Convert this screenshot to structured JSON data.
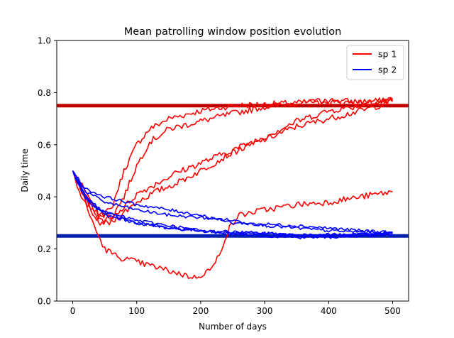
{
  "chart_data": {
    "type": "line",
    "title": "Mean patrolling window position evolution",
    "xlabel": "Number of days",
    "ylabel": "Daily time",
    "xlim": [
      -25,
      525
    ],
    "ylim": [
      0.0,
      1.0
    ],
    "x_ticks": [
      0,
      100,
      200,
      300,
      400,
      500
    ],
    "y_ticks": [
      0.0,
      0.2,
      0.4,
      0.6,
      0.8,
      1.0
    ],
    "x_tick_labels": [
      "0",
      "100",
      "200",
      "300",
      "400",
      "500"
    ],
    "y_tick_labels": [
      "0.0",
      "0.2",
      "0.4",
      "0.6",
      "0.8",
      "1.0"
    ],
    "grid": false,
    "legend_position": "top-right",
    "legend": [
      {
        "label": "sp 1",
        "color": "#ff0000"
      },
      {
        "label": "sp 2",
        "color": "#0000ff"
      }
    ],
    "reference_lines": [
      {
        "y": 0.75,
        "color": "#c00000"
      },
      {
        "y": 0.25,
        "color": "#0020b0"
      }
    ],
    "series": [
      {
        "group": "sp 1",
        "color": "#ff0000",
        "points": [
          [
            0,
            0.5
          ],
          [
            20,
            0.4
          ],
          [
            40,
            0.33
          ],
          [
            60,
            0.35
          ],
          [
            80,
            0.5
          ],
          [
            100,
            0.6
          ],
          [
            120,
            0.66
          ],
          [
            150,
            0.7
          ],
          [
            200,
            0.73
          ],
          [
            250,
            0.75
          ],
          [
            300,
            0.755
          ],
          [
            350,
            0.76
          ],
          [
            400,
            0.77
          ],
          [
            450,
            0.765
          ],
          [
            500,
            0.77
          ]
        ]
      },
      {
        "group": "sp 1",
        "color": "#ff0000",
        "points": [
          [
            0,
            0.5
          ],
          [
            20,
            0.38
          ],
          [
            40,
            0.31
          ],
          [
            60,
            0.32
          ],
          [
            80,
            0.4
          ],
          [
            100,
            0.52
          ],
          [
            120,
            0.61
          ],
          [
            150,
            0.66
          ],
          [
            200,
            0.69
          ],
          [
            250,
            0.72
          ],
          [
            300,
            0.745
          ],
          [
            350,
            0.76
          ],
          [
            400,
            0.765
          ],
          [
            450,
            0.76
          ],
          [
            500,
            0.77
          ]
        ]
      },
      {
        "group": "sp 1",
        "color": "#ff0000",
        "points": [
          [
            0,
            0.5
          ],
          [
            20,
            0.4
          ],
          [
            40,
            0.3
          ],
          [
            60,
            0.3
          ],
          [
            80,
            0.34
          ],
          [
            100,
            0.38
          ],
          [
            130,
            0.42
          ],
          [
            160,
            0.45
          ],
          [
            200,
            0.5
          ],
          [
            250,
            0.57
          ],
          [
            300,
            0.62
          ],
          [
            350,
            0.67
          ],
          [
            400,
            0.7
          ],
          [
            450,
            0.73
          ],
          [
            500,
            0.765
          ]
        ]
      },
      {
        "group": "sp 1",
        "color": "#ff0000",
        "points": [
          [
            0,
            0.5
          ],
          [
            20,
            0.42
          ],
          [
            40,
            0.34
          ],
          [
            60,
            0.32
          ],
          [
            80,
            0.36
          ],
          [
            100,
            0.41
          ],
          [
            130,
            0.45
          ],
          [
            160,
            0.49
          ],
          [
            200,
            0.53
          ],
          [
            250,
            0.58
          ],
          [
            300,
            0.63
          ],
          [
            350,
            0.69
          ],
          [
            400,
            0.73
          ],
          [
            450,
            0.75
          ],
          [
            500,
            0.775
          ]
        ]
      },
      {
        "group": "sp 1",
        "color": "#ff0000",
        "points": [
          [
            0,
            0.5
          ],
          [
            10,
            0.42
          ],
          [
            20,
            0.37
          ],
          [
            30,
            0.31
          ],
          [
            40,
            0.25
          ],
          [
            50,
            0.2
          ],
          [
            70,
            0.17
          ],
          [
            100,
            0.15
          ],
          [
            130,
            0.13
          ],
          [
            160,
            0.11
          ],
          [
            190,
            0.09
          ],
          [
            200,
            0.1
          ],
          [
            220,
            0.13
          ],
          [
            235,
            0.22
          ],
          [
            245,
            0.28
          ],
          [
            260,
            0.33
          ],
          [
            300,
            0.35
          ],
          [
            350,
            0.37
          ],
          [
            400,
            0.38
          ],
          [
            450,
            0.4
          ],
          [
            500,
            0.42
          ]
        ]
      },
      {
        "group": "sp 2",
        "color": "#0000ff",
        "points": [
          [
            0,
            0.5
          ],
          [
            20,
            0.42
          ],
          [
            50,
            0.38
          ],
          [
            100,
            0.35
          ],
          [
            150,
            0.33
          ],
          [
            200,
            0.32
          ],
          [
            250,
            0.31
          ],
          [
            300,
            0.29
          ],
          [
            350,
            0.28
          ],
          [
            400,
            0.27
          ],
          [
            450,
            0.265
          ],
          [
            500,
            0.26
          ]
        ]
      },
      {
        "group": "sp 2",
        "color": "#0000ff",
        "points": [
          [
            0,
            0.5
          ],
          [
            20,
            0.43
          ],
          [
            50,
            0.4
          ],
          [
            100,
            0.37
          ],
          [
            150,
            0.35
          ],
          [
            200,
            0.33
          ],
          [
            250,
            0.3
          ],
          [
            300,
            0.295
          ],
          [
            350,
            0.29
          ],
          [
            400,
            0.28
          ],
          [
            450,
            0.27
          ],
          [
            500,
            0.265
          ]
        ]
      },
      {
        "group": "sp 2",
        "color": "#0000ff",
        "points": [
          [
            0,
            0.5
          ],
          [
            20,
            0.4
          ],
          [
            50,
            0.34
          ],
          [
            100,
            0.3
          ],
          [
            150,
            0.28
          ],
          [
            200,
            0.27
          ],
          [
            250,
            0.265
          ],
          [
            300,
            0.26
          ],
          [
            350,
            0.255
          ],
          [
            400,
            0.25
          ],
          [
            450,
            0.255
          ],
          [
            500,
            0.26
          ]
        ]
      },
      {
        "group": "sp 2",
        "color": "#0000ff",
        "points": [
          [
            0,
            0.5
          ],
          [
            20,
            0.39
          ],
          [
            50,
            0.33
          ],
          [
            100,
            0.3
          ],
          [
            150,
            0.28
          ],
          [
            200,
            0.27
          ],
          [
            250,
            0.26
          ],
          [
            300,
            0.26
          ],
          [
            350,
            0.25
          ],
          [
            400,
            0.255
          ],
          [
            450,
            0.255
          ],
          [
            500,
            0.26
          ]
        ]
      },
      {
        "group": "sp 2",
        "color": "#0000ff",
        "points": [
          [
            0,
            0.5
          ],
          [
            20,
            0.4
          ],
          [
            50,
            0.34
          ],
          [
            100,
            0.31
          ],
          [
            150,
            0.29
          ],
          [
            200,
            0.27
          ],
          [
            250,
            0.26
          ],
          [
            300,
            0.25
          ],
          [
            350,
            0.245
          ],
          [
            400,
            0.245
          ],
          [
            450,
            0.25
          ],
          [
            500,
            0.255
          ]
        ]
      }
    ]
  }
}
